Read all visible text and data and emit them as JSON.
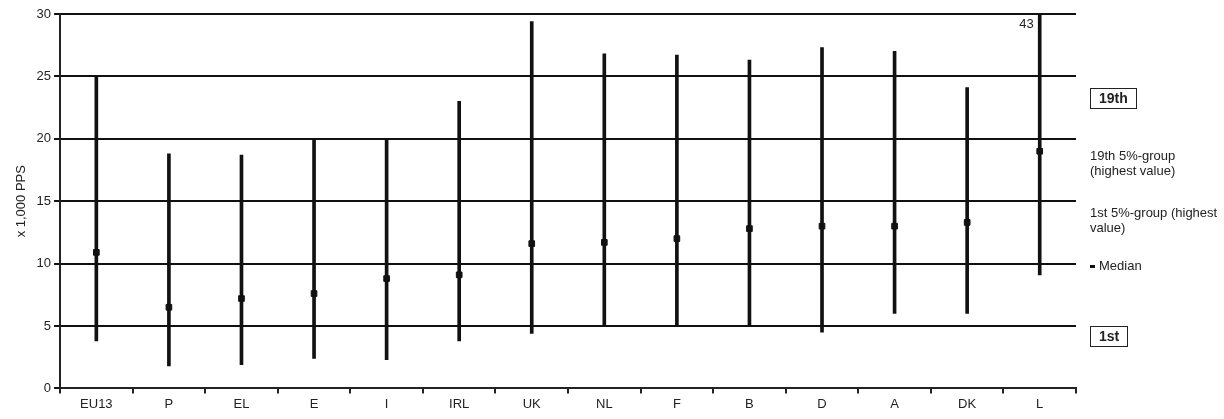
{
  "chart_data": {
    "type": "bar",
    "ylabel": "x 1,000 PPS",
    "categories": [
      "EU13",
      "P",
      "EL",
      "E",
      "I",
      "IRL",
      "UK",
      "NL",
      "F",
      "B",
      "D",
      "A",
      "DK",
      "L"
    ],
    "series": [
      {
        "type": "bar",
        "color": "#111111",
        "base": [
          3.8,
          1.8,
          1.9,
          2.4,
          2.3,
          3.8,
          4.4,
          5,
          5,
          5,
          4.5,
          6,
          6,
          9.1
        ],
        "values": [
          21.2,
          17,
          16.8,
          17.6,
          17.7,
          19.2,
          25,
          21.8,
          21.7,
          21.3,
          22.8,
          21,
          18.1,
          33.9
        ],
        "value_labels": [
          null,
          null,
          null,
          null,
          null,
          null,
          null,
          null,
          null,
          null,
          null,
          null,
          null,
          "43"
        ]
      },
      {
        "type": "scatter",
        "name": "Median",
        "color": "#111111",
        "x": [
          "EU13",
          "P",
          "EL",
          "E",
          "I",
          "IRL",
          "UK",
          "NL",
          "F",
          "B",
          "D",
          "A",
          "DK",
          "L"
        ],
        "values": [
          10.9,
          6.5,
          7.2,
          7.6,
          8.8,
          9.1,
          11.6,
          11.7,
          12,
          12.8,
          13,
          13,
          13.3,
          19
        ]
      }
    ],
    "ylim": [
      0,
      30
    ],
    "yticks": [
      0,
      5,
      10,
      15,
      20,
      25,
      30
    ],
    "grid": "y",
    "legend": "right",
    "marker": "square",
    "annotations": [
      "19th",
      "19th  5%-group (highest value)",
      "1st  5%-group (highest value)",
      "1st"
    ]
  }
}
